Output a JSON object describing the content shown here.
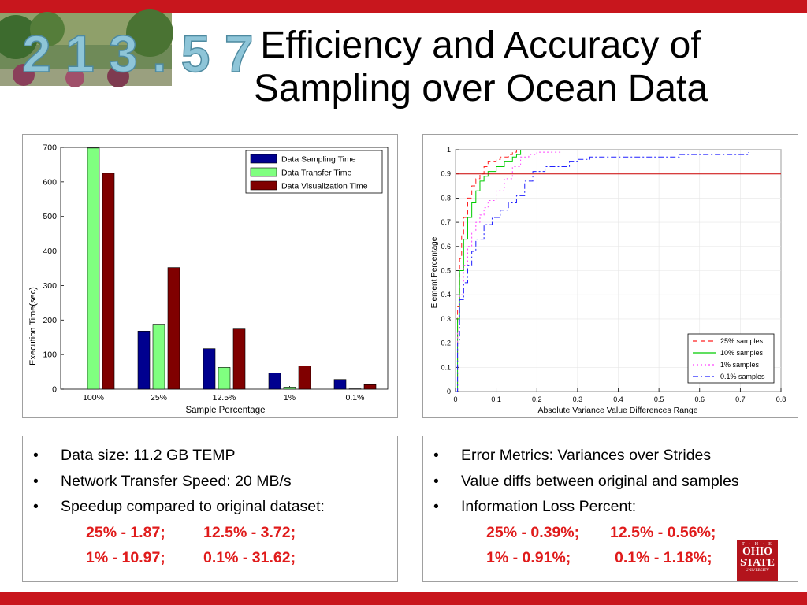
{
  "slide": {
    "title_line1": "Efficiency and Accuracy of",
    "title_line2": "Sampling over Ocean Data",
    "photo_text": "2 1 3 . 5 7"
  },
  "left_text": {
    "bullet_glyph": "•",
    "items": [
      "Data size: 11.2 GB TEMP",
      "Network Transfer Speed: 20 MB/s",
      "Speedup compared to original dataset:"
    ],
    "row1_a": "25% - 1.87;",
    "row1_b": "12.5% - 3.72;",
    "row2_a": "1% - 10.97;",
    "row2_b": "0.1% - 31.62;"
  },
  "right_text": {
    "bullet_glyph": "•",
    "items": [
      "Error Metrics: Variances over Strides",
      "Value diffs between original and samples",
      "Information Loss Percent:"
    ],
    "row1_a": "25% - 0.39%;",
    "row1_b": "12.5% - 0.56%;",
    "row2_a": "1% - 0.91%;",
    "row2_b": "0.1% - 1.18%;"
  },
  "logo": {
    "line1": "T · H · E",
    "line2a": "OHIO",
    "line2b": "STATE",
    "line3": "UNIVERSITY"
  },
  "colors": {
    "accent_red": "#c8161d",
    "highlight_red": "#e01b1b"
  },
  "chart_data": [
    {
      "type": "bar",
      "categories": [
        "100%",
        "25%",
        "12.5%",
        "1%",
        "0.1%"
      ],
      "series": [
        {
          "name": "Data Sampling Time",
          "color": "#00008f",
          "values": [
            0,
            168,
            117,
            47,
            28
          ]
        },
        {
          "name": "Data Transfer Time",
          "color": "#80ff80",
          "values": [
            698,
            188,
            63,
            6,
            1
          ]
        },
        {
          "name": "Data Visualization Time",
          "color": "#800000",
          "values": [
            625,
            352,
            174,
            67,
            13
          ]
        }
      ],
      "xlabel": "Sample Percentage",
      "ylabel": "Execution Time(sec)",
      "ylim": [
        0,
        700
      ],
      "yticks": [
        "0",
        "100",
        "200",
        "300",
        "400",
        "500",
        "600",
        "700"
      ],
      "legend_position": "top-right"
    },
    {
      "type": "line",
      "xlabel": "Absolute Variance Value Differences Range",
      "ylabel": "Element Percentage",
      "xlim": [
        0,
        0.8
      ],
      "ylim": [
        0,
        1
      ],
      "xticks": [
        "0",
        "0.1",
        "0.2",
        "0.3",
        "0.4",
        "0.5",
        "0.6",
        "0.7",
        "0.8"
      ],
      "yticks": [
        "0",
        "0.1",
        "0.2",
        "0.3",
        "0.4",
        "0.5",
        "0.6",
        "0.7",
        "0.8",
        "0.9",
        "1"
      ],
      "reference_line": {
        "y": 0.9,
        "color": "#cc0000"
      },
      "legend_position": "bottom-right",
      "series": [
        {
          "name": "25% samples",
          "color": "#ff2020",
          "dash": "6,4",
          "x": [
            0,
            0.005,
            0.01,
            0.015,
            0.02,
            0.03,
            0.04,
            0.05,
            0.06,
            0.07,
            0.08,
            0.09,
            0.1,
            0.11,
            0.12,
            0.13,
            0.14,
            0.15
          ],
          "y": [
            0,
            0.35,
            0.55,
            0.65,
            0.72,
            0.8,
            0.85,
            0.88,
            0.9,
            0.93,
            0.95,
            0.95,
            0.96,
            0.97,
            0.97,
            0.98,
            0.99,
            1.0
          ]
        },
        {
          "name": "10% samples",
          "color": "#00cc00",
          "dash": "",
          "x": [
            0,
            0.005,
            0.01,
            0.02,
            0.03,
            0.04,
            0.05,
            0.06,
            0.07,
            0.08,
            0.1,
            0.12,
            0.14,
            0.15,
            0.16
          ],
          "y": [
            0,
            0.3,
            0.5,
            0.63,
            0.72,
            0.78,
            0.83,
            0.87,
            0.89,
            0.91,
            0.93,
            0.95,
            0.97,
            0.98,
            1.0
          ]
        },
        {
          "name": "1% samples",
          "color": "#ff44ff",
          "dash": "2,3",
          "x": [
            0,
            0.005,
            0.01,
            0.02,
            0.03,
            0.04,
            0.05,
            0.06,
            0.07,
            0.08,
            0.1,
            0.12,
            0.14,
            0.16,
            0.18,
            0.2,
            0.26
          ],
          "y": [
            0,
            0.25,
            0.4,
            0.52,
            0.6,
            0.66,
            0.7,
            0.73,
            0.76,
            0.79,
            0.83,
            0.88,
            0.93,
            0.97,
            0.98,
            0.99,
            0.99
          ]
        },
        {
          "name": "0.1% samples",
          "color": "#2020ff",
          "dash": "7,3,2,3",
          "x": [
            0,
            0.005,
            0.01,
            0.02,
            0.03,
            0.04,
            0.05,
            0.07,
            0.09,
            0.11,
            0.13,
            0.15,
            0.17,
            0.19,
            0.22,
            0.28,
            0.3,
            0.33,
            0.45,
            0.55,
            0.7,
            0.72
          ],
          "y": [
            0,
            0.2,
            0.38,
            0.45,
            0.52,
            0.58,
            0.63,
            0.69,
            0.72,
            0.75,
            0.78,
            0.81,
            0.87,
            0.91,
            0.93,
            0.95,
            0.96,
            0.97,
            0.97,
            0.98,
            0.98,
            0.99
          ]
        }
      ]
    }
  ]
}
